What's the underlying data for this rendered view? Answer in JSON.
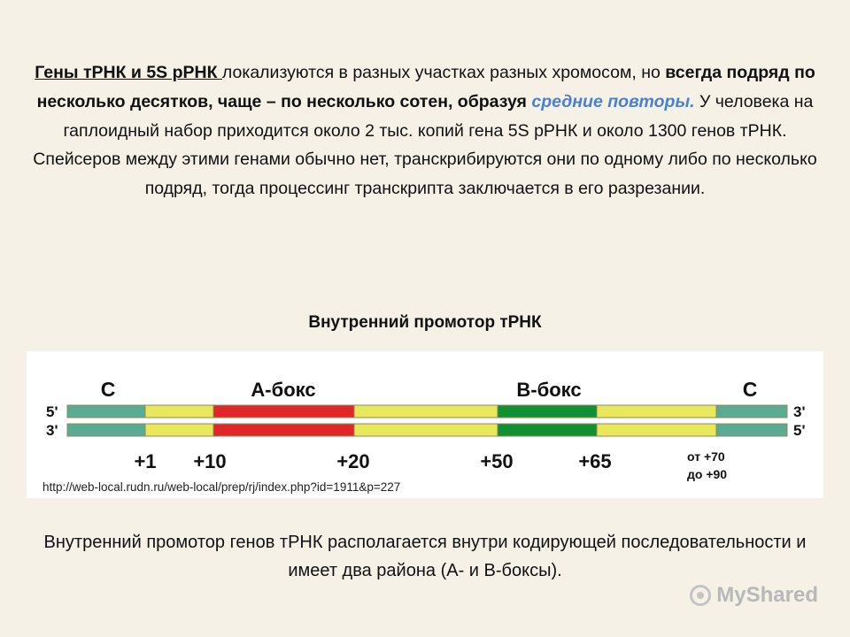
{
  "paragraph": {
    "genes_title": "Гены тРНК и 5S рРНК ",
    "t1": "локализуются в разных участках разных хромосом, но ",
    "b1": "всегда подряд по несколько десятков, чаще – по несколько сотен, образуя ",
    "accent": "средние повторы.",
    "t2": " У человека на гаплоидный набор приходится около 2 тыс. копий гена 5S рРНК и около 1300 генов тРНК. Спейсеров между этими генами обычно нет, транскрибируются они по одному либо по несколько подряд, тогда процессинг транскрипта заключается в его разрезании."
  },
  "diagram_title": "Внутренний промотор тРНК",
  "diagram": {
    "top_labels": {
      "c_left": "С",
      "a_box": "А-бокс",
      "b_box": "В-бокс",
      "c_right": "С"
    },
    "strand_labels": {
      "top_left": "5'",
      "top_right": "3'",
      "bottom_left": "3'",
      "bottom_right": "5'"
    },
    "positions": {
      "p1": "+1",
      "p10": "+10",
      "p20": "+20",
      "p50": "+50",
      "p65": "+65",
      "from70": "от +70",
      "to90": "до +90"
    },
    "colors": {
      "teal": "#5aab92",
      "yellow": "#e8e85a",
      "red": "#e02626",
      "green": "#109030",
      "border": "#8a8a66"
    }
  },
  "source_url": "http://web-local.rudn.ru/web-local/prep/rj/index.php?id=1911&p=227",
  "caption": "Внутренний промотор генов тРНК располагается внутри кодирующей последовательности и имеет два района (А- и В-боксы).",
  "watermark": "MyShared"
}
